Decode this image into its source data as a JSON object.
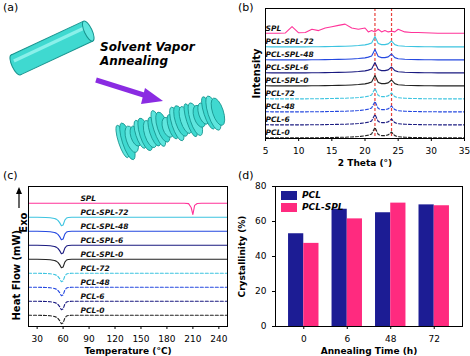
{
  "diagram": {
    "panel_label": "(a)",
    "text": "Solvent Vapor Annealing"
  },
  "chart_data": [
    {
      "panel_label": "(b)",
      "type": "line",
      "xlabel": "2 Theta (°)",
      "ylabel": "Intensity",
      "x": [
        5,
        6,
        7,
        8,
        9,
        10,
        11,
        12,
        13,
        14,
        15,
        16,
        17,
        18,
        19,
        20,
        20.5,
        21,
        21.5,
        22,
        22.5,
        23,
        23.5,
        24,
        24.5,
        25,
        26,
        27,
        28,
        29,
        30,
        31,
        32,
        33,
        34,
        35
      ],
      "xlim": [
        5,
        35
      ],
      "xticks": [
        5,
        10,
        15,
        20,
        25,
        30,
        35
      ],
      "ylim": [
        0,
        100
      ],
      "tick_labels": "x",
      "vlines": {
        "values": [
          21.5,
          24
        ],
        "color": "#e8403a",
        "line_style": "dashed"
      },
      "series": [
        {
          "name": "PCL-0",
          "color": "#222222",
          "line_style": "dashed",
          "values": [
            0.6,
            0.5,
            0.5,
            0.5,
            0.5,
            0.5,
            0.5,
            0.6,
            0.6,
            0.7,
            0.8,
            0.9,
            1,
            1.2,
            1.5,
            2,
            2.6,
            3.5,
            8.5,
            3,
            2.2,
            2.2,
            2.8,
            5,
            2.2,
            1.4,
            1,
            0.8,
            0.7,
            0.6,
            0.6,
            0.5,
            0.5,
            0.5,
            0.5,
            0.5
          ]
        },
        {
          "name": "PCL-6",
          "color": "#1a1a80",
          "line_style": "dashed",
          "values": [
            10.6,
            10.5,
            10.5,
            10.5,
            10.5,
            10.5,
            10.5,
            10.6,
            10.6,
            10.7,
            10.8,
            10.9,
            11,
            11.2,
            11.5,
            12,
            12.6,
            13.5,
            18.5,
            13,
            12.2,
            12.2,
            12.8,
            15,
            12.2,
            11.4,
            11,
            10.8,
            10.7,
            10.6,
            10.6,
            10.5,
            10.5,
            10.5,
            10.5,
            10.5
          ]
        },
        {
          "name": "PCL-48",
          "color": "#2448e0",
          "line_style": "dashed",
          "values": [
            20.6,
            20.5,
            20.5,
            20.5,
            20.5,
            20.5,
            20.5,
            20.6,
            20.6,
            20.7,
            20.8,
            20.9,
            21,
            21.2,
            21.5,
            22,
            22.6,
            23.5,
            28.5,
            23,
            22.2,
            22.2,
            22.8,
            25,
            22.2,
            21.4,
            21,
            20.8,
            20.7,
            20.6,
            20.6,
            20.5,
            20.5,
            20.5,
            20.5,
            20.5
          ]
        },
        {
          "name": "PCL-72",
          "color": "#3cc4e0",
          "line_style": "dashed",
          "values": [
            30.6,
            30.5,
            30.5,
            30.5,
            30.5,
            30.5,
            30.5,
            30.6,
            30.6,
            30.7,
            30.8,
            30.9,
            31,
            31.2,
            31.5,
            32,
            32.6,
            33.5,
            38.5,
            33,
            32.2,
            32.2,
            32.8,
            35,
            32.2,
            31.4,
            31,
            30.8,
            30.7,
            30.6,
            30.6,
            30.5,
            30.5,
            30.5,
            30.5,
            30.5
          ]
        },
        {
          "name": "PCL-SPL-0",
          "color": "#222222",
          "line_style": "solid",
          "values": [
            40.6,
            40.5,
            40.5,
            40.5,
            40.5,
            40.5,
            40.5,
            40.6,
            40.6,
            40.7,
            40.8,
            40.9,
            41,
            41.2,
            41.5,
            42,
            42.6,
            43.5,
            48.5,
            43,
            42.2,
            42.2,
            42.8,
            45,
            42.2,
            41.4,
            41,
            40.8,
            40.7,
            40.6,
            40.6,
            40.5,
            40.5,
            40.5,
            40.5,
            40.5
          ]
        },
        {
          "name": "PCL-SPL-6",
          "color": "#1a1a80",
          "line_style": "solid",
          "values": [
            50.6,
            50.5,
            50.5,
            50.5,
            50.5,
            50.5,
            50.5,
            50.6,
            50.6,
            50.7,
            50.8,
            50.9,
            51,
            51.2,
            51.5,
            52,
            52.6,
            53.5,
            58.5,
            53,
            52.2,
            52.2,
            52.8,
            55,
            52.2,
            51.4,
            51,
            50.8,
            50.7,
            50.6,
            50.6,
            50.5,
            50.5,
            50.5,
            50.5,
            50.5
          ]
        },
        {
          "name": "PCL-SPL-48",
          "color": "#2448e0",
          "line_style": "solid",
          "values": [
            60.6,
            60.5,
            60.5,
            60.5,
            60.5,
            60.5,
            60.5,
            60.6,
            60.6,
            60.7,
            60.8,
            60.9,
            61,
            61.2,
            61.5,
            62,
            62.6,
            63.5,
            68.5,
            63,
            62.2,
            62.2,
            62.8,
            65,
            62.2,
            61.4,
            61,
            60.8,
            60.7,
            60.6,
            60.6,
            60.5,
            60.5,
            60.5,
            60.5,
            60.5
          ]
        },
        {
          "name": "PCL-SPL-72",
          "color": "#3cc4e0",
          "line_style": "solid",
          "values": [
            70.6,
            70.5,
            70.5,
            70.5,
            70.5,
            70.5,
            70.5,
            70.6,
            70.6,
            70.7,
            70.8,
            70.9,
            71,
            71.2,
            71.5,
            72,
            72.6,
            73.5,
            78.5,
            73,
            72.2,
            72.2,
            72.8,
            75,
            72.2,
            71.4,
            71,
            70.8,
            70.7,
            70.6,
            70.6,
            70.5,
            70.5,
            70.5,
            70.5,
            70.5
          ]
        },
        {
          "name": "SPL",
          "color": "#ff3399",
          "line_style": "solid",
          "values": [
            81,
            81,
            81,
            81.2,
            86,
            81.3,
            81.5,
            84,
            83,
            85,
            86,
            87,
            88,
            85,
            84,
            85,
            82,
            83,
            82,
            84,
            82,
            83,
            82,
            82.5,
            82,
            84,
            82,
            81.5,
            81.5,
            81.3,
            81.2,
            81,
            81,
            81,
            81,
            81
          ]
        }
      ]
    },
    {
      "panel_label": "(c)",
      "type": "line",
      "xlabel": "Temperature (°C)",
      "ylabel": "Heat Flow (mW)",
      "annotations": [
        "Exo"
      ],
      "x": [
        20,
        30,
        40,
        45,
        50,
        52,
        54,
        56,
        58,
        60,
        62,
        64,
        66,
        70,
        80,
        100,
        150,
        200,
        205,
        208,
        210,
        212,
        215,
        220,
        250
      ],
      "xlim": [
        20,
        250
      ],
      "xticks": [
        30,
        60,
        90,
        120,
        150,
        180,
        210,
        240
      ],
      "ylim": [
        0,
        100
      ],
      "tick_labels": "x",
      "series": [
        {
          "name": "PCL-0",
          "color": "#222222",
          "line_style": "dashed",
          "values": [
            8,
            8,
            7.9,
            7.7,
            7.2,
            6.7,
            5.8,
            4.2,
            2,
            2.5,
            6,
            7.5,
            7.9,
            8,
            8,
            8,
            8,
            8,
            8,
            8,
            8,
            8,
            8,
            8,
            8
          ]
        },
        {
          "name": "PCL-6",
          "color": "#1a1a80",
          "line_style": "dashed",
          "values": [
            18,
            18,
            17.9,
            17.7,
            17.2,
            16.7,
            15.8,
            14.2,
            12,
            12.5,
            16,
            17.5,
            17.9,
            18,
            18,
            18,
            18,
            18,
            18,
            18,
            18,
            18,
            18,
            18,
            18
          ]
        },
        {
          "name": "PCL-48",
          "color": "#2448e0",
          "line_style": "dashed",
          "values": [
            28,
            28,
            27.9,
            27.7,
            27.2,
            26.7,
            25.8,
            24.2,
            22,
            22.5,
            26,
            27.5,
            27.9,
            28,
            28,
            28,
            28,
            28,
            28,
            28,
            28,
            28,
            28,
            28,
            28
          ]
        },
        {
          "name": "PCL-72",
          "color": "#3cc4e0",
          "line_style": "dashed",
          "values": [
            38,
            38,
            37.9,
            37.7,
            37.2,
            36.7,
            35.8,
            34.2,
            32,
            32.5,
            36,
            37.5,
            37.9,
            38,
            38,
            38,
            38,
            38,
            38,
            38,
            38,
            38,
            38,
            38,
            38
          ]
        },
        {
          "name": "PCL-SPL-0",
          "color": "#222222",
          "line_style": "solid",
          "values": [
            48,
            48,
            47.9,
            47.7,
            47.2,
            46.7,
            45.8,
            44.2,
            42,
            42.5,
            46,
            47.5,
            47.9,
            48,
            48,
            48,
            48,
            48,
            48,
            48,
            48,
            48,
            48,
            48,
            48
          ]
        },
        {
          "name": "PCL-SPL-6",
          "color": "#1a1a80",
          "line_style": "solid",
          "values": [
            58,
            58,
            57.9,
            57.7,
            57.2,
            56.7,
            55.8,
            54.2,
            52,
            52.5,
            56,
            57.5,
            57.9,
            58,
            58,
            58,
            58,
            58,
            58,
            58,
            58,
            58,
            58,
            58,
            58
          ]
        },
        {
          "name": "PCL-SPL-48",
          "color": "#2448e0",
          "line_style": "solid",
          "values": [
            68,
            68,
            67.9,
            67.7,
            67.2,
            66.7,
            65.8,
            64.2,
            62,
            62.5,
            66,
            67.5,
            67.9,
            68,
            68,
            68,
            68,
            68,
            68,
            68,
            68,
            68,
            68,
            68,
            68
          ]
        },
        {
          "name": "PCL-SPL-72",
          "color": "#3cc4e0",
          "line_style": "solid",
          "values": [
            78,
            78,
            77.9,
            77.7,
            77.2,
            76.7,
            75.8,
            74.2,
            72,
            72.5,
            76,
            77.5,
            77.9,
            78,
            78,
            78,
            78,
            78,
            78,
            78,
            78,
            78,
            78,
            78,
            78
          ]
        },
        {
          "name": "SPL",
          "color": "#ff3399",
          "line_style": "solid",
          "values": [
            88,
            88,
            88,
            88,
            88,
            88,
            88,
            88,
            88,
            88,
            88,
            88,
            88,
            88,
            88,
            88,
            88,
            88,
            87.8,
            85,
            80,
            86.5,
            87.9,
            88,
            88
          ]
        }
      ]
    },
    {
      "panel_label": "(d)",
      "type": "bar",
      "xlabel": "Annealing Time (h)",
      "ylabel": "Crystallinity (%)",
      "categories": [
        "0",
        "6",
        "48",
        "72"
      ],
      "ylim": [
        0,
        80
      ],
      "yticks": [
        0,
        20,
        40,
        60,
        80
      ],
      "legend": "top-left",
      "series": [
        {
          "name": "PCL",
          "color": "#1c1c94",
          "values": [
            53,
            67,
            65,
            69.5
          ]
        },
        {
          "name": "PCL-SPL",
          "color": "#ff2a7f",
          "values": [
            47.5,
            61.5,
            70.5,
            69
          ]
        }
      ]
    }
  ]
}
